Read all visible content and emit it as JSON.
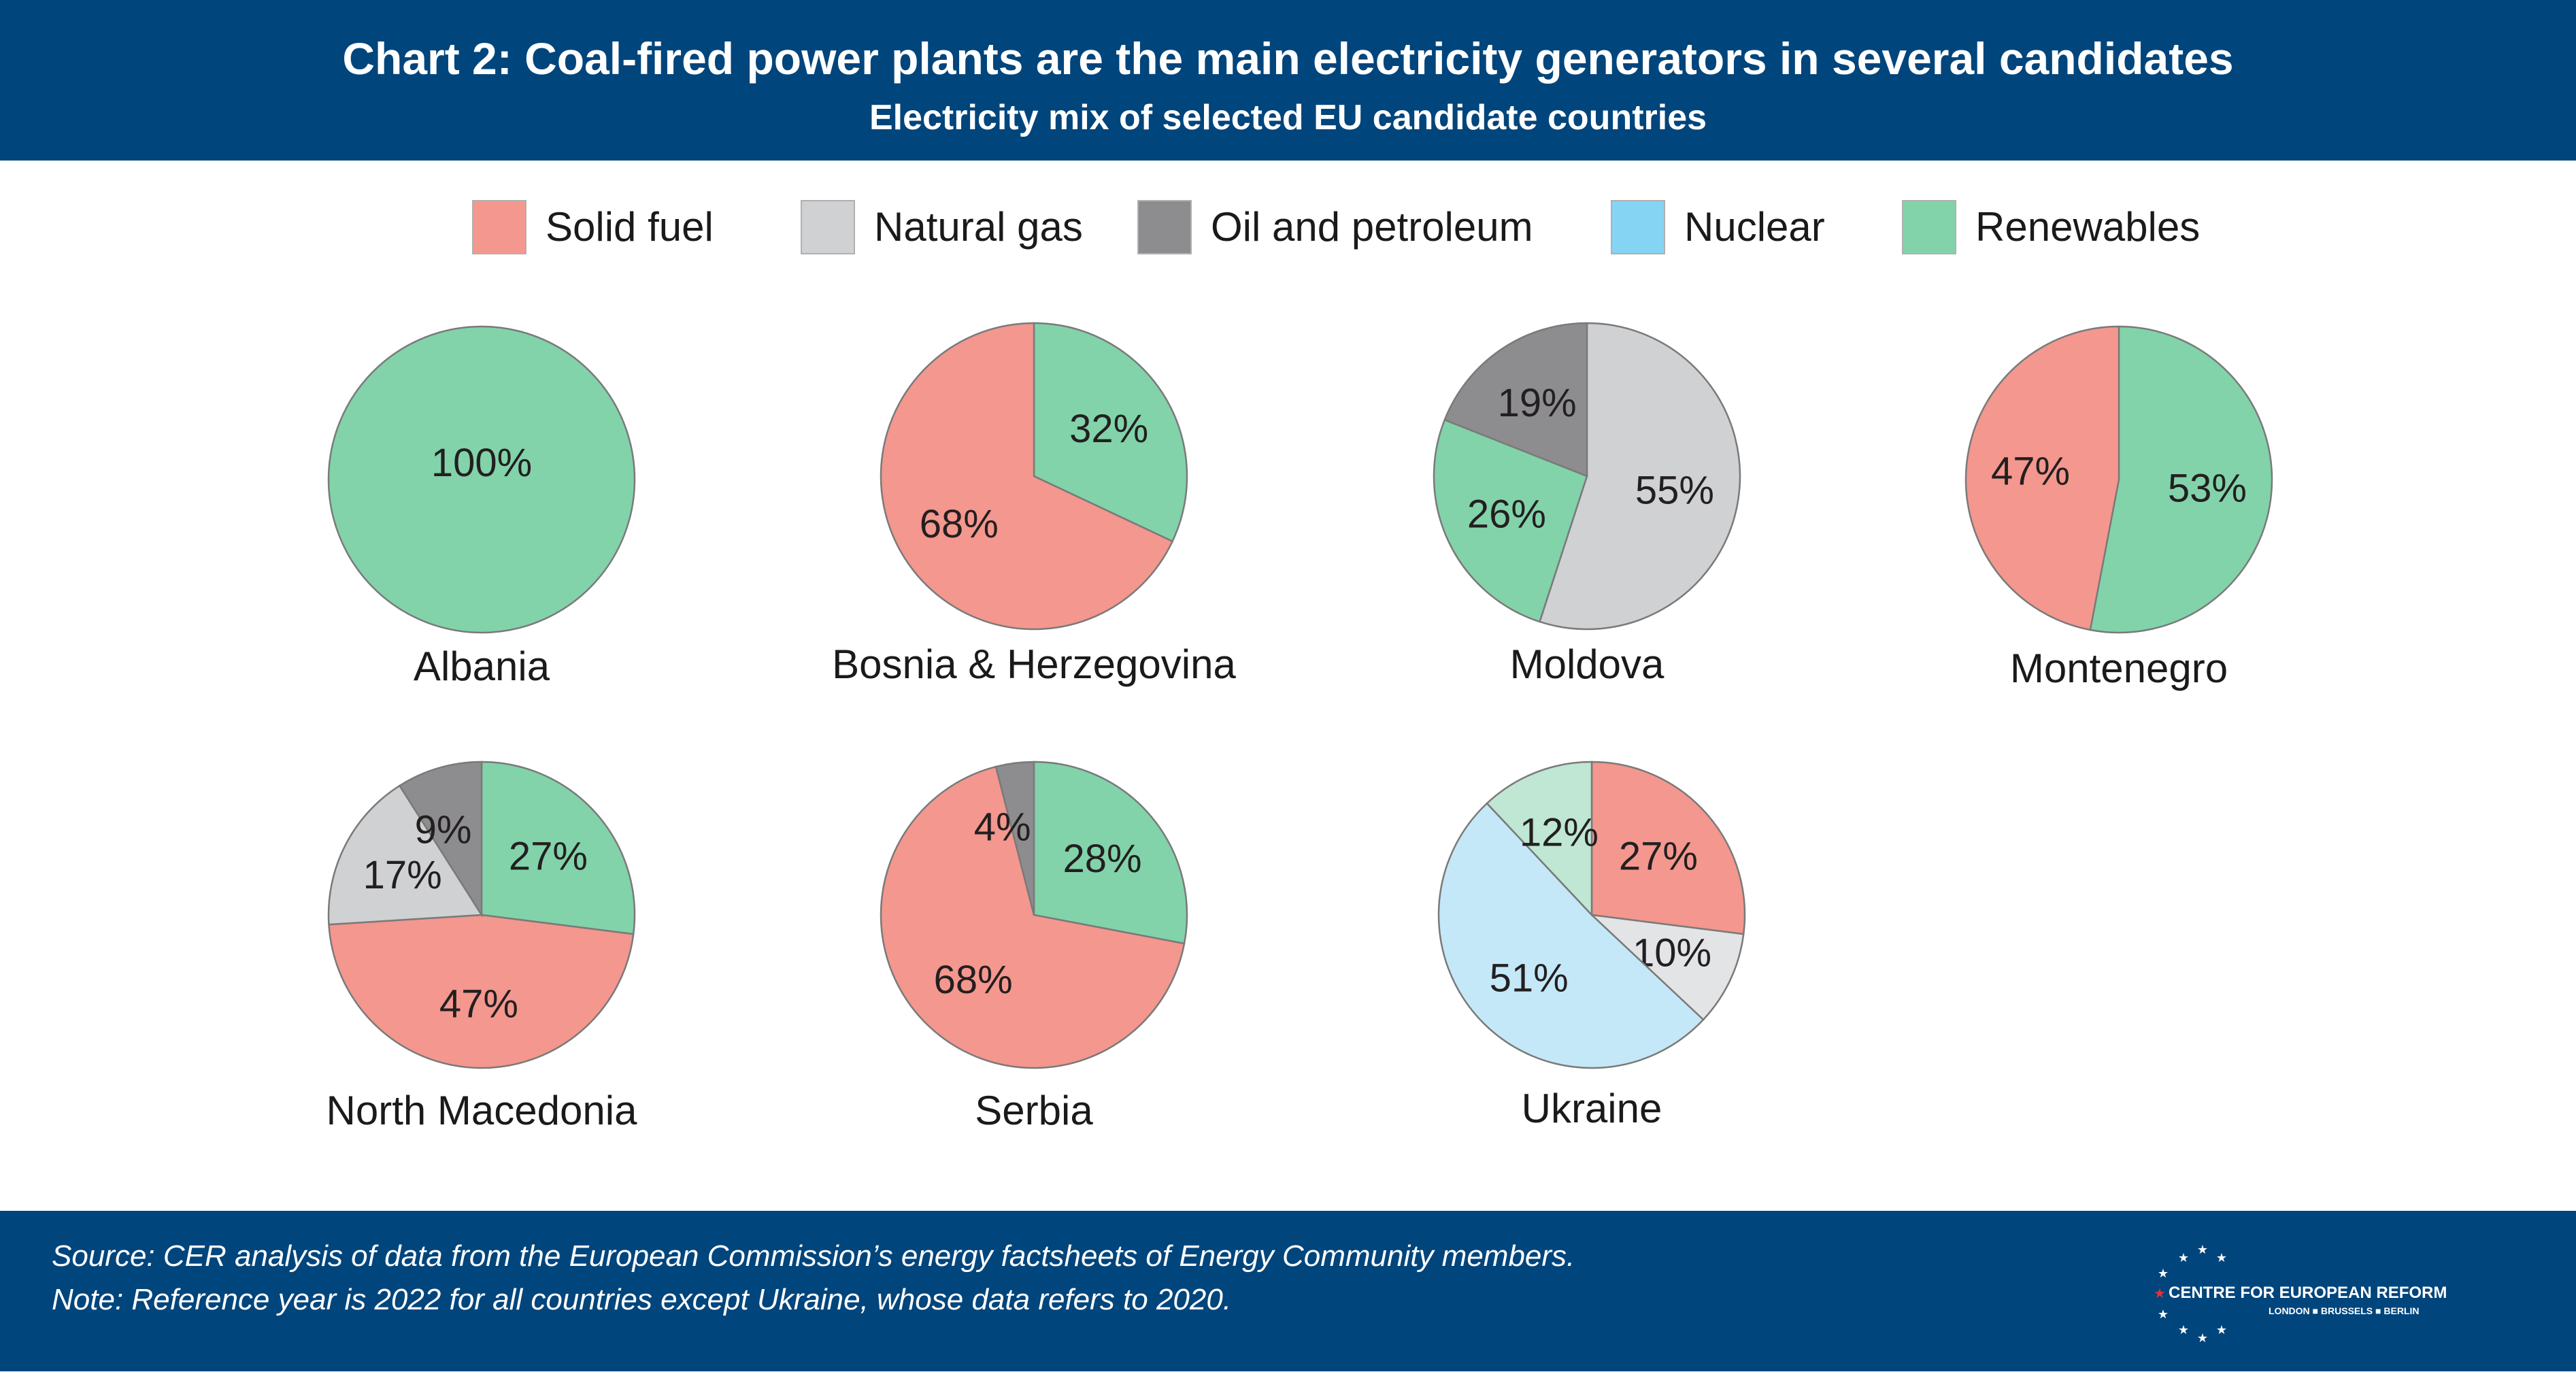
{
  "header": {
    "title": "Chart 2: Coal-fired power plants are the main electricity generators in several candidates",
    "subtitle": "Electricity mix of selected EU candidate countries"
  },
  "legend": [
    {
      "label": "Solid fuel",
      "color": "#f4978e"
    },
    {
      "label": "Natural gas",
      "color": "#d0d1d3"
    },
    {
      "label": "Oil and petroleum",
      "color": "#8d8d8f"
    },
    {
      "label": "Nuclear",
      "color": "#86d4f3"
    },
    {
      "label": "Renewables",
      "color": "#82d3aa"
    }
  ],
  "chart_data": [
    {
      "type": "pie",
      "title": "Albania",
      "slices": [
        {
          "label": "Renewables",
          "value": 100,
          "color": "#82d3aa"
        }
      ]
    },
    {
      "type": "pie",
      "title": "Bosnia & Herzegovina",
      "slices": [
        {
          "label": "Renewables",
          "value": 32,
          "color": "#82d3aa"
        },
        {
          "label": "Solid fuel",
          "value": 68,
          "color": "#f4978e"
        }
      ]
    },
    {
      "type": "pie",
      "title": "Moldova",
      "slices": [
        {
          "label": "Natural gas",
          "value": 55,
          "color": "#d0d1d3"
        },
        {
          "label": "Renewables",
          "value": 26,
          "color": "#82d3aa"
        },
        {
          "label": "Oil and petroleum",
          "value": 19,
          "color": "#8d8d8f"
        }
      ]
    },
    {
      "type": "pie",
      "title": "Montenegro",
      "slices": [
        {
          "label": "Renewables",
          "value": 53,
          "color": "#82d3aa"
        },
        {
          "label": "Solid fuel",
          "value": 47,
          "color": "#f4978e"
        }
      ]
    },
    {
      "type": "pie",
      "title": "North Macedonia",
      "slices": [
        {
          "label": "Renewables",
          "value": 27,
          "color": "#82d3aa"
        },
        {
          "label": "Solid fuel",
          "value": 47,
          "color": "#f4978e"
        },
        {
          "label": "Natural gas",
          "value": 17,
          "color": "#d0d1d3"
        },
        {
          "label": "Oil and petroleum",
          "value": 9,
          "color": "#8d8d8f"
        }
      ]
    },
    {
      "type": "pie",
      "title": "Serbia",
      "slices": [
        {
          "label": "Renewables",
          "value": 28,
          "color": "#82d3aa"
        },
        {
          "label": "Solid fuel",
          "value": 68,
          "color": "#f4978e"
        },
        {
          "label": "Oil and petroleum",
          "value": 4,
          "color": "#8d8d8f"
        }
      ]
    },
    {
      "type": "pie",
      "title": "Ukraine",
      "slices": [
        {
          "label": "Solid fuel",
          "value": 27,
          "color": "#f4978e"
        },
        {
          "label": "Natural gas",
          "value": 10,
          "color": "#e3e4e5"
        },
        {
          "label": "Nuclear",
          "value": 51,
          "color": "#c4e8f7"
        },
        {
          "label": "Renewables",
          "value": 12,
          "color": "#bfe7d3"
        }
      ]
    }
  ],
  "footer": {
    "source": "Source: CER analysis of data from the European Commission’s energy factsheets of Energy Community members.",
    "note": "Note: Reference year is 2022 for all countries except Ukraine, whose data refers to 2020.",
    "logo_text": "CENTRE FOR EUROPEAN REFORM",
    "logo_cities": "LONDON ■ BRUSSELS ■ BERLIN"
  }
}
